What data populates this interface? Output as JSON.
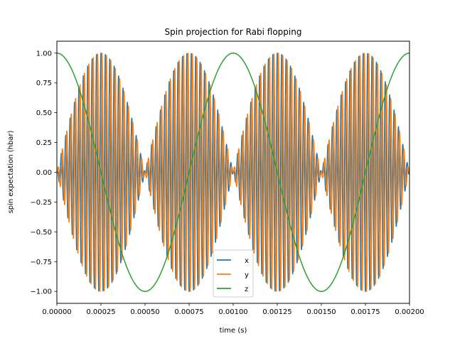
{
  "chart_data": {
    "type": "line",
    "title": "Spin projection for Rabi flopping",
    "xlabel": "time (s)",
    "ylabel": "spin expectation (hbar)",
    "xlim": [
      0,
      0.002
    ],
    "ylim": [
      -1.1,
      1.1
    ],
    "x_ticks": [
      0,
      0.00025,
      0.0005,
      0.00075,
      0.001,
      0.00125,
      0.0015,
      0.00175,
      0.002
    ],
    "x_tick_labels": [
      "0.00000",
      "0.00025",
      "0.00050",
      "0.00075",
      "0.00100",
      "0.00125",
      "0.00150",
      "0.00175",
      "0.00200"
    ],
    "y_ticks": [
      -1.0,
      -0.75,
      -0.5,
      -0.25,
      0.0,
      0.25,
      0.5,
      0.75,
      1.0
    ],
    "y_tick_labels": [
      "−1.00",
      "−0.75",
      "−0.50",
      "−0.25",
      "0.00",
      "0.25",
      "0.50",
      "0.75",
      "1.00"
    ],
    "grid": false,
    "legend_position": "bottom-center",
    "series": [
      {
        "name": "x",
        "color": "#1f77b4",
        "model": "sin(2*pi*f_rabi*t) * cos(2*pi*f_larmor*t)",
        "amplitude": 1.0
      },
      {
        "name": "y",
        "color": "#ff7f0e",
        "model": "sin(2*pi*f_rabi*t) * sin(2*pi*f_larmor*t)",
        "amplitude": 1.0
      },
      {
        "name": "z",
        "color": "#2ca02c",
        "model": "cos(2*pi*f_rabi*t)",
        "amplitude": 1.0
      }
    ],
    "rabi_frequency_hz": 1000,
    "larmor_frequency_hz": 40000,
    "t_range": [
      0,
      0.002
    ]
  }
}
